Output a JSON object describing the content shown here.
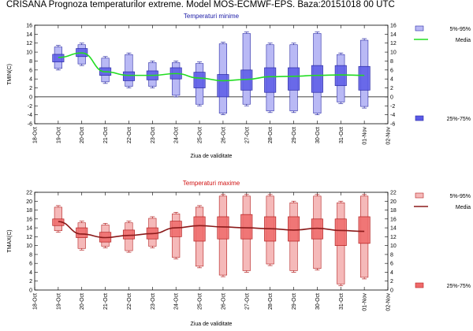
{
  "header": {
    "title": "CRISANA  Prognoza temperaturilor extreme.  Model MOS-ECMWF-EPS. Baza:20151018 00 UTC"
  },
  "colors": {
    "min_outer_fill": "#b9b9f5",
    "min_inner_fill": "#5a5ae6",
    "min_stroke": "#2a2aa6",
    "min_mean": "#22dd22",
    "min_title": "#1a1aa6",
    "max_outer_fill": "#f5b9b9",
    "max_inner_fill": "#ef6a6a",
    "max_stroke": "#b42020",
    "max_mean": "#8b1a1a",
    "max_title": "#d01010"
  },
  "chart_data": [
    {
      "type": "box",
      "title": "Temperaturi minime",
      "xlabel": "Ziua de validitate",
      "ylabel": "TMIN(C)",
      "ylim": [
        -6,
        16
      ],
      "yticks": [
        -6,
        -4,
        -2,
        0,
        2,
        4,
        6,
        8,
        10,
        12,
        14,
        16
      ],
      "categories": [
        "18-Oct",
        "19-Oct",
        "20-Oct",
        "21-Oct",
        "22-Oct",
        "23-Oct",
        "24-Oct",
        "25-Oct",
        "26-Oct",
        "27-Oct",
        "28-Oct",
        "29-Oct",
        "30-Oct",
        "31-Oct",
        "01-Nov",
        "02-Nov"
      ],
      "legend": {
        "outer": "5%-95%",
        "mean": "Media",
        "inner": "25%-75%"
      },
      "boxes": [
        {
          "x": "19-Oct",
          "p5": 6.0,
          "p25": 7.8,
          "p75": 9.5,
          "p95": 11.5,
          "mean": 8.8
        },
        {
          "x": "20-Oct",
          "p5": 7.0,
          "p25": 9.0,
          "p75": 10.8,
          "p95": 12.0,
          "mean": 9.8
        },
        {
          "x": "21-Oct",
          "p5": 3.0,
          "p25": 4.8,
          "p75": 6.5,
          "p95": 9.0,
          "mean": 5.6
        },
        {
          "x": "22-Oct",
          "p5": 2.0,
          "p25": 3.6,
          "p75": 5.6,
          "p95": 9.8,
          "mean": 4.8
        },
        {
          "x": "23-Oct",
          "p5": 2.0,
          "p25": 3.8,
          "p75": 5.8,
          "p95": 8.0,
          "mean": 4.8
        },
        {
          "x": "24-Oct",
          "p5": 0.0,
          "p25": 4.0,
          "p75": 6.5,
          "p95": 8.0,
          "mean": 5.2
        },
        {
          "x": "25-Oct",
          "p5": -2.0,
          "p25": 2.0,
          "p75": 5.5,
          "p95": 7.8,
          "mean": 4.2
        },
        {
          "x": "26-Oct",
          "p5": -4.0,
          "p25": 0.0,
          "p75": 5.0,
          "p95": 12.2,
          "mean": 3.6
        },
        {
          "x": "27-Oct",
          "p5": -2.0,
          "p25": 1.5,
          "p75": 6.0,
          "p95": 14.5,
          "mean": 3.9
        },
        {
          "x": "28-Oct",
          "p5": -3.5,
          "p25": 1.0,
          "p75": 6.5,
          "p95": 12.0,
          "mean": 4.5
        },
        {
          "x": "29-Oct",
          "p5": -3.5,
          "p25": 1.5,
          "p75": 6.5,
          "p95": 12.0,
          "mean": 4.6
        },
        {
          "x": "30-Oct",
          "p5": -4.0,
          "p25": 1.0,
          "p75": 7.0,
          "p95": 14.5,
          "mean": 4.8
        },
        {
          "x": "31-Oct",
          "p5": -1.5,
          "p25": 2.5,
          "p75": 7.0,
          "p95": 9.8,
          "mean": 4.9
        },
        {
          "x": "01-Nov",
          "p5": -2.5,
          "p25": 1.5,
          "p75": 6.8,
          "p95": 13.0,
          "mean": 4.8
        }
      ]
    },
    {
      "type": "box",
      "title": "Temperaturi maxime",
      "xlabel": "Ziua de validitate",
      "ylabel": "TMAX(C)",
      "ylim": [
        0,
        22
      ],
      "yticks": [
        0,
        2,
        4,
        6,
        8,
        10,
        12,
        14,
        16,
        18,
        20,
        22
      ],
      "categories": [
        "18-Oct",
        "19-Oct",
        "20-Oct",
        "21-Oct",
        "22-Oct",
        "23-Oct",
        "24-Oct",
        "25-Oct",
        "26-Oct",
        "27-Oct",
        "28-Oct",
        "29-Oct",
        "30-Oct",
        "31-Oct",
        "01-Nov",
        "02-Nov"
      ],
      "legend": {
        "outer": "5%-95%",
        "mean": "Media",
        "inner": "25%-75%"
      },
      "boxes": [
        {
          "x": "19-Oct",
          "p5": 13.0,
          "p25": 14.5,
          "p75": 16.0,
          "p95": 19.0,
          "mean": 15.4
        },
        {
          "x": "20-Oct",
          "p5": 9.0,
          "p25": 11.8,
          "p75": 14.0,
          "p95": 15.5,
          "mean": 12.6
        },
        {
          "x": "21-Oct",
          "p5": 9.5,
          "p25": 10.8,
          "p75": 13.0,
          "p95": 15.0,
          "mean": 11.8
        },
        {
          "x": "22-Oct",
          "p5": 8.5,
          "p25": 11.5,
          "p75": 13.5,
          "p95": 15.5,
          "mean": 12.3
        },
        {
          "x": "23-Oct",
          "p5": 9.5,
          "p25": 11.5,
          "p75": 14.0,
          "p95": 16.5,
          "mean": 12.7
        },
        {
          "x": "24-Oct",
          "p5": 7.0,
          "p25": 12.0,
          "p75": 15.5,
          "p95": 17.5,
          "mean": 14.0
        },
        {
          "x": "25-Oct",
          "p5": 5.0,
          "p25": 11.0,
          "p75": 16.5,
          "p95": 19.0,
          "mean": 14.5
        },
        {
          "x": "26-Oct",
          "p5": 3.0,
          "p25": 11.5,
          "p75": 16.5,
          "p95": 21.5,
          "mean": 14.2
        },
        {
          "x": "27-Oct",
          "p5": 4.0,
          "p25": 11.5,
          "p75": 17.0,
          "p95": 21.5,
          "mean": 14.0
        },
        {
          "x": "28-Oct",
          "p5": 5.5,
          "p25": 11.0,
          "p75": 16.5,
          "p95": 21.5,
          "mean": 13.8
        },
        {
          "x": "29-Oct",
          "p5": 4.0,
          "p25": 11.0,
          "p75": 16.5,
          "p95": 20.0,
          "mean": 13.5
        },
        {
          "x": "30-Oct",
          "p5": 4.5,
          "p25": 11.5,
          "p75": 16.0,
          "p95": 21.5,
          "mean": 13.9
        },
        {
          "x": "31-Oct",
          "p5": 1.0,
          "p25": 10.0,
          "p75": 16.0,
          "p95": 20.0,
          "mean": 13.4
        },
        {
          "x": "01-Nov",
          "p5": 2.5,
          "p25": 10.5,
          "p75": 16.5,
          "p95": 21.5,
          "mean": 13.2
        }
      ]
    }
  ]
}
